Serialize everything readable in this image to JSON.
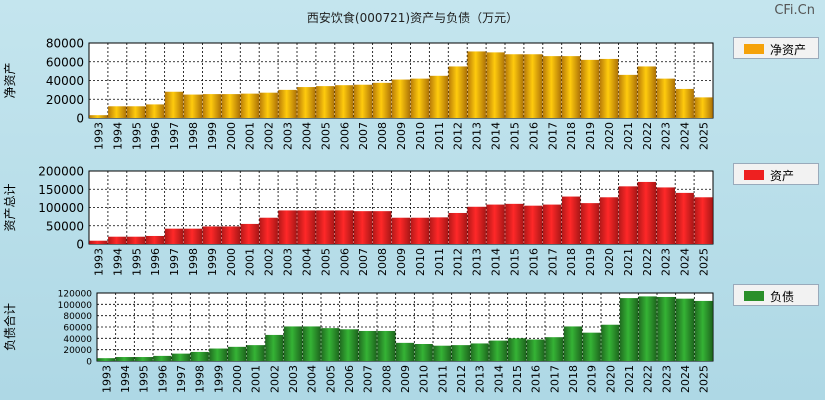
{
  "title": "西安饮食(000721)资产与负债（万元）",
  "brand": "CFi.Cn",
  "chart_data": [
    {
      "type": "bar",
      "ylabel": "净资产",
      "legend": "净资产",
      "color": "#f5a20a",
      "ylim": [
        0,
        80000
      ],
      "yticks": [
        "0",
        "20000",
        "40000",
        "60000",
        "80000"
      ],
      "categories": [
        "1993",
        "1994",
        "1995",
        "1996",
        "1997",
        "1998",
        "1999",
        "2000",
        "2001",
        "2002",
        "2003",
        "2004",
        "2005",
        "2006",
        "2007",
        "2008",
        "2009",
        "2010",
        "2011",
        "2012",
        "2013",
        "2014",
        "2015",
        "2016",
        "2017",
        "2018",
        "2019",
        "2020",
        "2021",
        "2022",
        "2023",
        "2024",
        "2025"
      ],
      "values": [
        3000,
        12500,
        12500,
        14500,
        28000,
        25000,
        25500,
        25500,
        26000,
        27000,
        30000,
        33000,
        34000,
        35000,
        35500,
        37500,
        41000,
        42000,
        45000,
        55000,
        71000,
        70000,
        68000,
        68000,
        66000,
        66000,
        62000,
        63000,
        46000,
        55000,
        42000,
        31000,
        22000
      ]
    },
    {
      "type": "bar",
      "ylabel": "资产总计",
      "legend": "资产",
      "color": "#ee2020",
      "ylim": [
        0,
        200000
      ],
      "yticks": [
        "0",
        "50000",
        "100000",
        "150000",
        "200000"
      ],
      "categories": [
        "1993",
        "1994",
        "1995",
        "1996",
        "1997",
        "1998",
        "1999",
        "2000",
        "2001",
        "2002",
        "2003",
        "2004",
        "2005",
        "2006",
        "2007",
        "2008",
        "2009",
        "2010",
        "2011",
        "2012",
        "2013",
        "2014",
        "2015",
        "2016",
        "2017",
        "2018",
        "2019",
        "2020",
        "2021",
        "2022",
        "2023",
        "2024",
        "2025"
      ],
      "values": [
        9000,
        20000,
        20000,
        22000,
        42000,
        42000,
        48000,
        48000,
        55000,
        72000,
        92000,
        92000,
        92000,
        92000,
        90000,
        90000,
        72000,
        72000,
        73000,
        85000,
        102000,
        108000,
        110000,
        105000,
        108000,
        130000,
        112000,
        128000,
        158000,
        170000,
        155000,
        140000,
        128000
      ]
    },
    {
      "type": "bar",
      "ylabel": "负债合计",
      "legend": "负债",
      "color": "#2a8f2a",
      "ylim": [
        0,
        120000
      ],
      "yticks": [
        "0",
        "20000",
        "40000",
        "60000",
        "80000",
        "100000",
        "120000"
      ],
      "categories": [
        "1993",
        "1994",
        "1995",
        "1996",
        "1997",
        "1998",
        "1999",
        "2000",
        "2001",
        "2002",
        "2003",
        "2004",
        "2005",
        "2006",
        "2007",
        "2008",
        "2009",
        "2010",
        "2011",
        "2012",
        "2013",
        "2014",
        "2015",
        "2016",
        "2017",
        "2018",
        "2019",
        "2020",
        "2021",
        "2022",
        "2023",
        "2024",
        "2025"
      ],
      "values": [
        5000,
        7000,
        7000,
        9000,
        13000,
        16000,
        22000,
        25000,
        28000,
        46000,
        61000,
        61000,
        58000,
        56000,
        53000,
        53000,
        32000,
        30000,
        27000,
        28000,
        31000,
        36000,
        40000,
        38000,
        42000,
        61000,
        50000,
        64000,
        111000,
        114000,
        113000,
        110000,
        106000
      ]
    }
  ]
}
